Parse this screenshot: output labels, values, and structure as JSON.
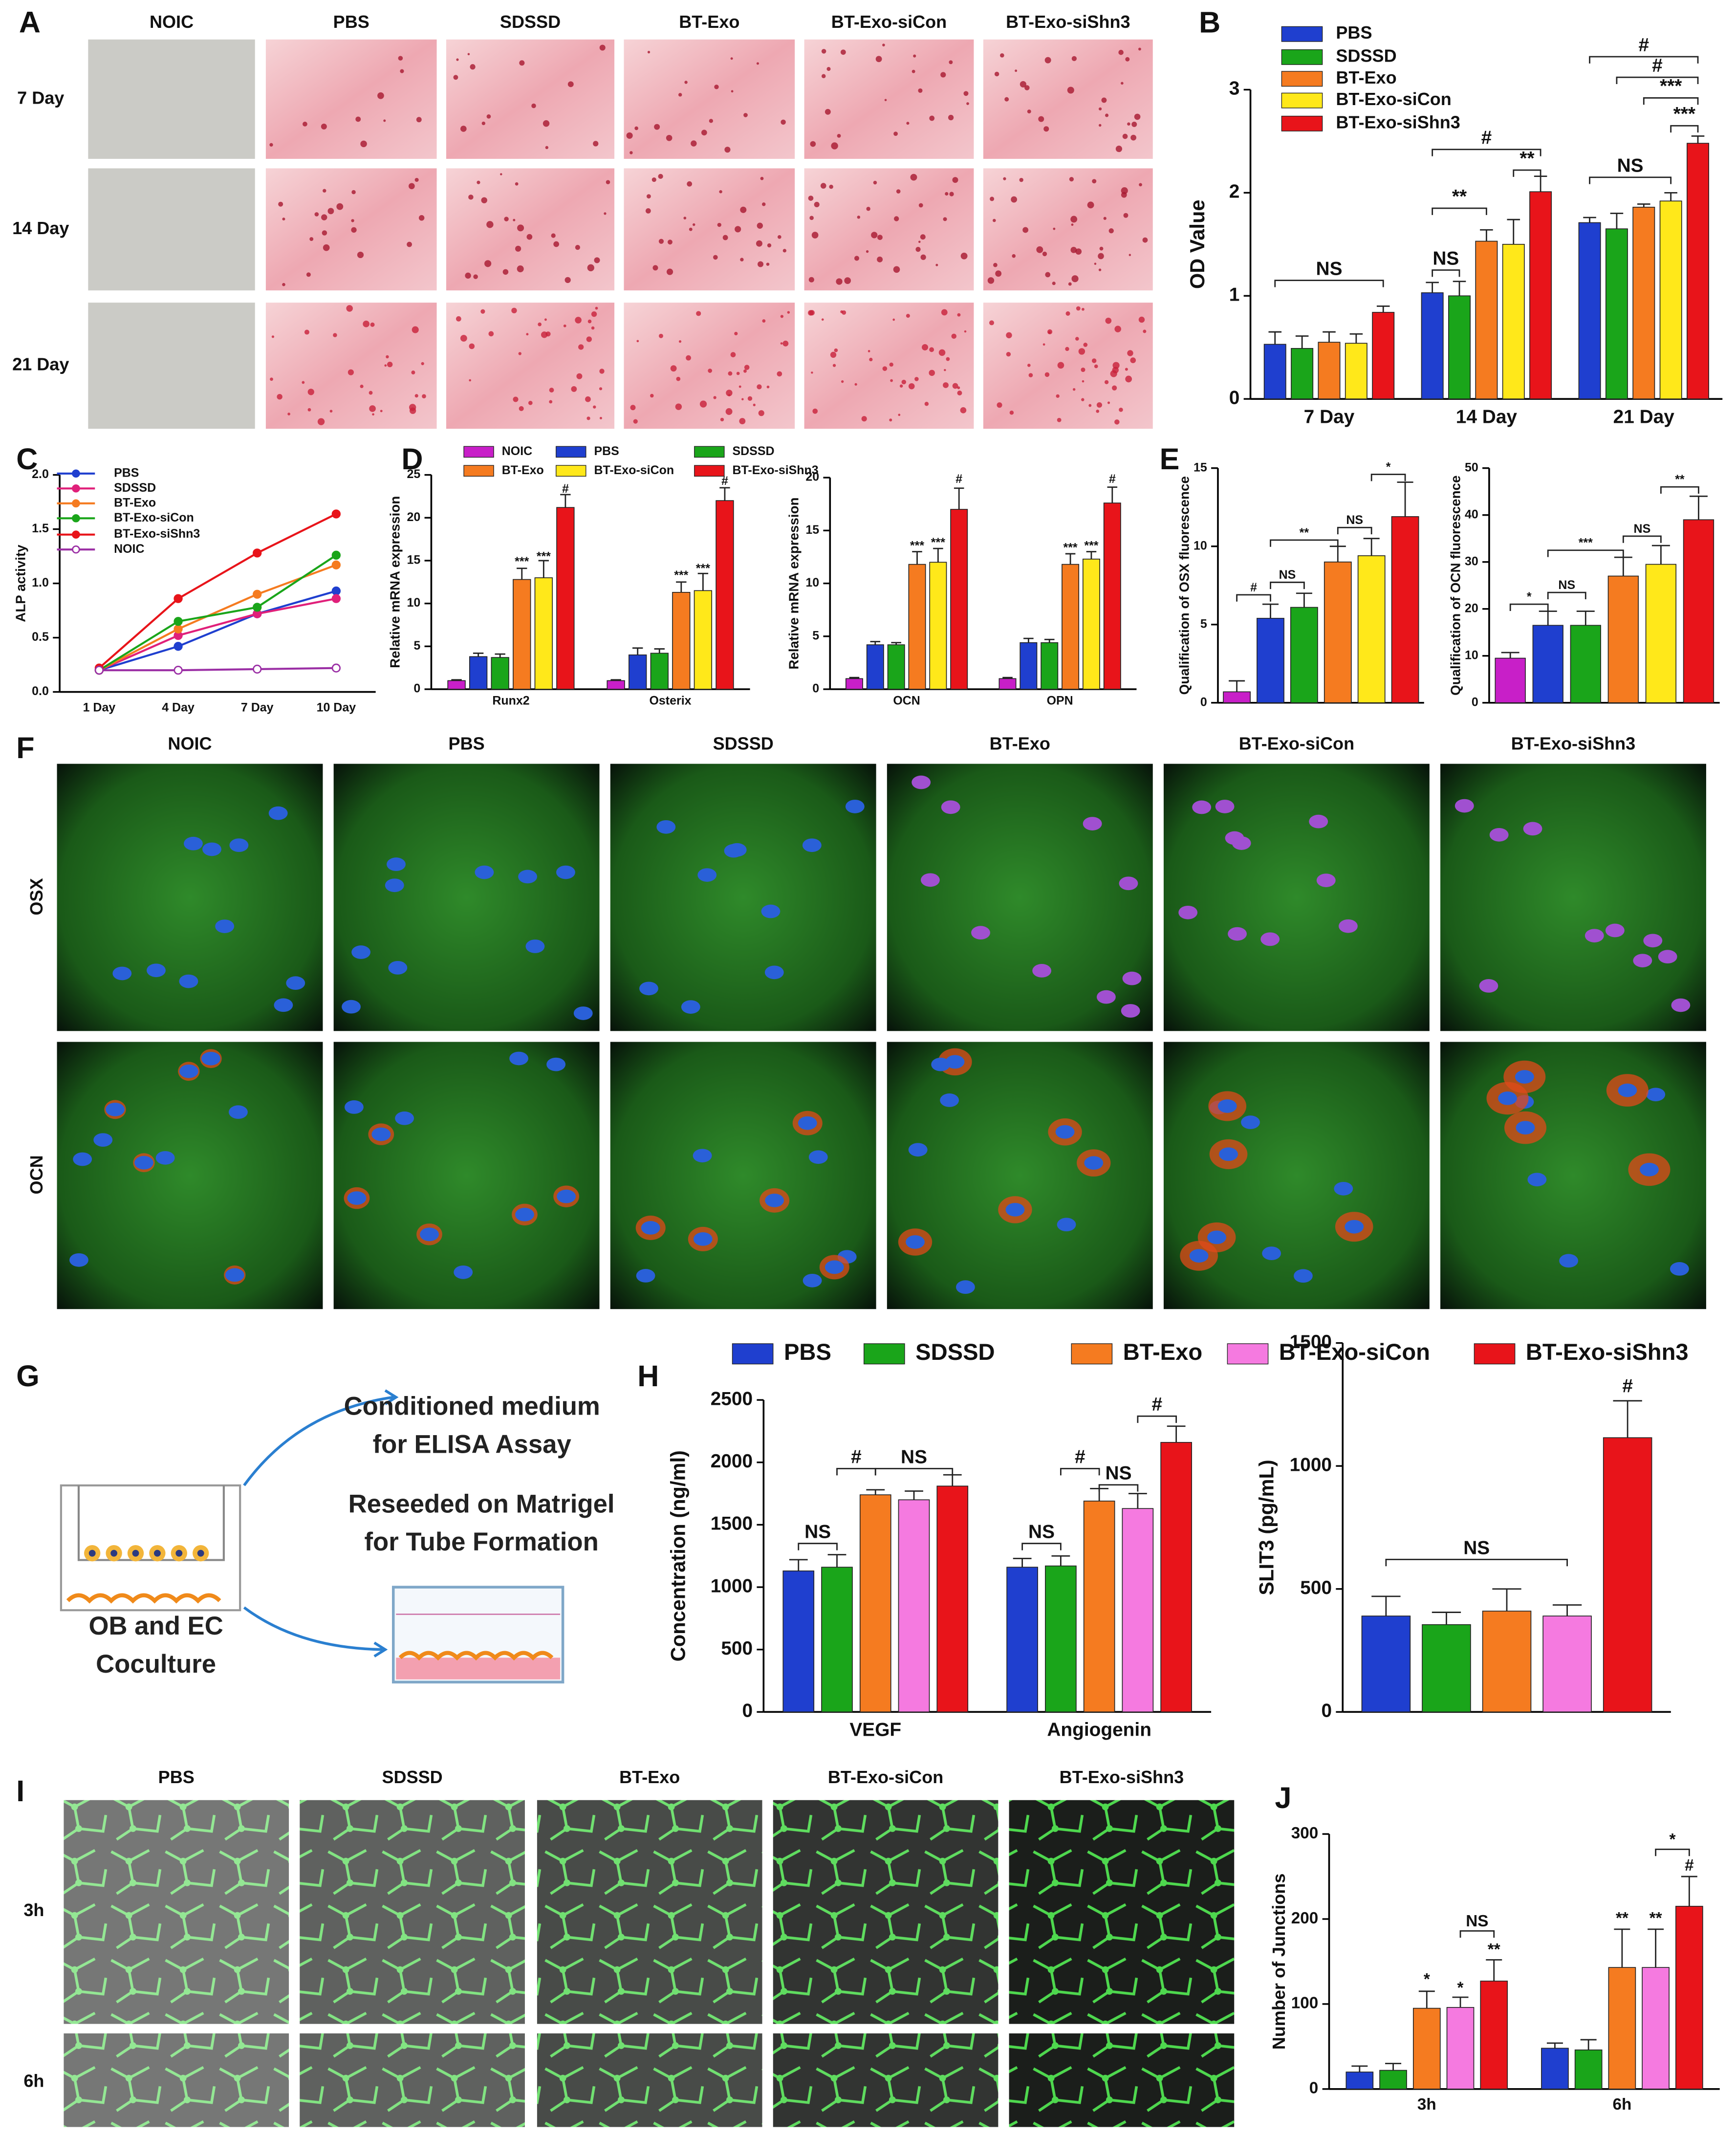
{
  "panel_labels": [
    "A",
    "B",
    "C",
    "D",
    "E",
    "F",
    "G",
    "H",
    "I",
    "J"
  ],
  "panel_a": {
    "columns": [
      "NOIC",
      "PBS",
      "SDSSD",
      "BT-Exo",
      "BT-Exo-siCon",
      "BT-Exo-siShn3"
    ],
    "rows": [
      "7 Day",
      "14 Day",
      "21 Day"
    ]
  },
  "panel_f": {
    "columns": [
      "NOIC",
      "PBS",
      "SDSSD",
      "BT-Exo",
      "BT-Exo-siCon",
      "BT-Exo-siShn3"
    ],
    "rows": [
      "OSX",
      "OCN"
    ]
  },
  "panel_g": {
    "texts": [
      "Conditioned medium",
      "for ELISA Assay",
      "Reseeded on Matrigel",
      "for Tube Formation",
      "OB and EC",
      "Coculture"
    ]
  },
  "panel_i": {
    "columns": [
      "PBS",
      "SDSSD",
      "BT-Exo",
      "BT-Exo-siCon",
      "BT-Exo-siShn3"
    ],
    "rows": [
      "3h",
      "6h"
    ]
  },
  "chart_data": [
    {
      "type": "bar",
      "ylabel": "OD Value",
      "categories": [
        "7 Day",
        "14 Day",
        "21 Day"
      ],
      "ylim": [
        0,
        3
      ],
      "yticks": [
        0,
        1,
        2,
        3
      ],
      "series": [
        {
          "name": "PBS",
          "color": "#1f3fcf",
          "values": [
            0.53,
            1.03,
            1.71
          ],
          "errors": [
            0.12,
            0.1,
            0.05
          ]
        },
        {
          "name": "SDSSD",
          "color": "#1aa51a",
          "values": [
            0.49,
            1.0,
            1.65
          ],
          "errors": [
            0.12,
            0.14,
            0.15
          ]
        },
        {
          "name": "BT-Exo",
          "color": "#f57b20",
          "values": [
            0.55,
            1.53,
            1.86
          ],
          "errors": [
            0.1,
            0.11,
            0.03
          ]
        },
        {
          "name": "BT-Exo-siCon",
          "color": "#ffe81a",
          "values": [
            0.54,
            1.5,
            1.92
          ],
          "errors": [
            0.09,
            0.24,
            0.08
          ]
        },
        {
          "name": "BT-Exo-siShn3",
          "color": "#e8141a",
          "values": [
            0.84,
            2.01,
            2.48
          ],
          "errors": [
            0.06,
            0.15,
            0.07
          ]
        }
      ],
      "annotations": [
        "NS",
        "NS",
        "**",
        "**",
        "#",
        "NS",
        "***",
        "***",
        "#",
        "#"
      ]
    },
    {
      "type": "line",
      "ylabel": "ALP activity",
      "categories": [
        "1 Day",
        "4 Day",
        "7 Day",
        "10 Day"
      ],
      "ylim": [
        0,
        2
      ],
      "yticks": [
        {
          "value": 0,
          "label": "0.0"
        },
        0.5,
        {
          "value": 1,
          "label": "1.0"
        },
        1.5,
        {
          "value": 2,
          "label": "2.0"
        }
      ],
      "series": [
        {
          "name": "PBS",
          "color": "#1f3fcf",
          "values": [
            0.2,
            0.42,
            0.72,
            0.93
          ]
        },
        {
          "name": "SDSSD",
          "color": "#e0207a",
          "values": [
            0.2,
            0.52,
            0.72,
            0.86
          ]
        },
        {
          "name": "BT-Exo",
          "color": "#f57b20",
          "values": [
            0.2,
            0.58,
            0.9,
            1.17
          ]
        },
        {
          "name": "BT-Exo-siCon",
          "color": "#1aa51a",
          "values": [
            0.2,
            0.65,
            0.78,
            1.26
          ]
        },
        {
          "name": "BT-Exo-siShn3",
          "color": "#e8141a",
          "values": [
            0.22,
            0.86,
            1.28,
            1.64
          ]
        },
        {
          "name": "NOIC",
          "color": "#9b2fa5",
          "marker": "open",
          "values": [
            0.2,
            0.2,
            0.21,
            0.22
          ]
        }
      ]
    },
    {
      "type": "bar",
      "ylabel": "Relative mRNA expression",
      "categories": [
        "Runx2",
        "Osterix"
      ],
      "ylim": [
        0,
        25
      ],
      "yticks": [
        0,
        5,
        10,
        15,
        20,
        25
      ],
      "series": [
        {
          "name": "NOIC",
          "color": "#c81fc8",
          "values": [
            1,
            1
          ],
          "errors": [
            0.1,
            0.1
          ]
        },
        {
          "name": "PBS",
          "color": "#1f3fcf",
          "values": [
            3.8,
            4
          ],
          "errors": [
            0.4,
            0.8
          ]
        },
        {
          "name": "SDSSD",
          "color": "#1aa51a",
          "values": [
            3.7,
            4.2
          ],
          "errors": [
            0.4,
            0.5
          ]
        },
        {
          "name": "BT-Exo",
          "color": "#f57b20",
          "values": [
            12.8,
            11.3
          ],
          "errors": [
            1.3,
            1.2
          ]
        },
        {
          "name": "BT-Exo-siCon",
          "color": "#ffe81a",
          "values": [
            13,
            11.5
          ],
          "errors": [
            2,
            2
          ]
        },
        {
          "name": "BT-Exo-siShn3",
          "color": "#e8141a",
          "values": [
            21.2,
            22
          ],
          "errors": [
            1.5,
            1.5
          ]
        }
      ],
      "annotations": [
        "***",
        "***",
        "#",
        "***",
        "***",
        "#"
      ]
    },
    {
      "type": "bar",
      "ylabel": "Relative mRNA expression",
      "categories": [
        "OCN",
        "OPN"
      ],
      "ylim": [
        0,
        20
      ],
      "yticks": [
        0,
        5,
        10,
        15,
        20
      ],
      "series": [
        {
          "color": "#c81fc8",
          "values": [
            1,
            1
          ],
          "errors": [
            0.1,
            0.1
          ]
        },
        {
          "color": "#1f3fcf",
          "values": [
            4.2,
            4.4
          ],
          "errors": [
            0.3,
            0.4
          ]
        },
        {
          "color": "#1aa51a",
          "values": [
            4.2,
            4.4
          ],
          "errors": [
            0.2,
            0.3
          ]
        },
        {
          "color": "#f57b20",
          "values": [
            11.8,
            11.8
          ],
          "errors": [
            1.2,
            1
          ]
        },
        {
          "color": "#ffe81a",
          "values": [
            12,
            12.3
          ],
          "errors": [
            1.3,
            0.7
          ]
        },
        {
          "color": "#e8141a",
          "values": [
            17,
            17.6
          ],
          "errors": [
            2,
            1.5
          ]
        }
      ],
      "annotations": [
        "***",
        "***",
        "#",
        "***",
        "***",
        "#"
      ]
    },
    {
      "type": "bar",
      "ylabel": "Qualification of OSX fluorescence",
      "categories": [
        null
      ],
      "ylim": [
        0,
        15
      ],
      "yticks": [
        0,
        5,
        10,
        15
      ],
      "series": [
        {
          "color": "#c81fc8",
          "values": [
            0.7
          ],
          "errors": [
            0.7
          ]
        },
        {
          "color": "#1f3fcf",
          "values": [
            5.4
          ],
          "errors": [
            0.9
          ]
        },
        {
          "color": "#1aa51a",
          "values": [
            6.1
          ],
          "errors": [
            0.9
          ]
        },
        {
          "color": "#f57b20",
          "values": [
            9
          ],
          "errors": [
            1
          ]
        },
        {
          "color": "#ffe81a",
          "values": [
            9.4
          ],
          "errors": [
            1.1
          ]
        },
        {
          "color": "#e8141a",
          "values": [
            11.9
          ],
          "errors": [
            2.2
          ]
        }
      ],
      "annotations": [
        "#",
        "NS",
        "**",
        "NS",
        "*"
      ]
    },
    {
      "type": "bar",
      "ylabel": "Qualification of OCN fluorescence",
      "categories": [
        null
      ],
      "ylim": [
        0,
        50
      ],
      "yticks": [
        0,
        10,
        20,
        30,
        40,
        50
      ],
      "series": [
        {
          "color": "#c81fc8",
          "values": [
            9.5
          ],
          "errors": [
            1.2
          ]
        },
        {
          "color": "#1f3fcf",
          "values": [
            16.5
          ],
          "errors": [
            3
          ]
        },
        {
          "color": "#1aa51a",
          "values": [
            16.5
          ],
          "errors": [
            3
          ]
        },
        {
          "color": "#f57b20",
          "values": [
            27
          ],
          "errors": [
            4
          ]
        },
        {
          "color": "#ffe81a",
          "values": [
            29.5
          ],
          "errors": [
            4
          ]
        },
        {
          "color": "#e8141a",
          "values": [
            39
          ],
          "errors": [
            5
          ]
        }
      ],
      "annotations": [
        "*",
        "NS",
        "***",
        "NS",
        "**"
      ]
    },
    {
      "type": "bar",
      "ylabel": "Concentration (ng/ml)",
      "categories": [
        "VEGF",
        "Angiogenin"
      ],
      "ylim": [
        0,
        2500
      ],
      "yticks": [
        0,
        500,
        1000,
        1500,
        2000,
        2500
      ],
      "series": [
        {
          "name": "PBS",
          "color": "#1f3fcf",
          "values": [
            1130,
            1160
          ],
          "errors": [
            90,
            70
          ]
        },
        {
          "name": "SDSSD",
          "color": "#1aa51a",
          "values": [
            1160,
            1170
          ],
          "errors": [
            100,
            80
          ]
        },
        {
          "name": "BT-Exo",
          "color": "#f57b20",
          "values": [
            1740,
            1690
          ],
          "errors": [
            40,
            100
          ]
        },
        {
          "name": "BT-Exo-siCon",
          "color": "#f57ae0",
          "values": [
            1700,
            1630
          ],
          "errors": [
            70,
            120
          ]
        },
        {
          "name": "BT-Exo-siShn3",
          "color": "#e8141a",
          "values": [
            1810,
            2160
          ],
          "errors": [
            90,
            130
          ]
        }
      ],
      "annotations": [
        "NS",
        "#",
        "NS",
        "NS",
        "#",
        "NS",
        "#"
      ]
    },
    {
      "type": "bar",
      "ylabel": "SLIT3 (pg/mL)",
      "categories": [
        null
      ],
      "ylim": [
        0,
        1500
      ],
      "yticks": [
        0,
        500,
        1000,
        1500
      ],
      "series": [
        {
          "color": "#1f3fcf",
          "values": [
            390
          ],
          "errors": [
            80
          ]
        },
        {
          "color": "#1aa51a",
          "values": [
            355
          ],
          "errors": [
            50
          ]
        },
        {
          "color": "#f57b20",
          "values": [
            410
          ],
          "errors": [
            90
          ]
        },
        {
          "color": "#f57ae0",
          "values": [
            390
          ],
          "errors": [
            45
          ]
        },
        {
          "color": "#e8141a",
          "values": [
            1115
          ],
          "errors": [
            150
          ]
        }
      ],
      "annotations": [
        "NS",
        "#"
      ]
    },
    {
      "type": "bar",
      "ylabel": "Number of Junctions",
      "categories": [
        "3h",
        "6h"
      ],
      "ylim": [
        0,
        300
      ],
      "yticks": [
        0,
        100,
        200,
        300
      ],
      "series": [
        {
          "color": "#1f3fcf",
          "values": [
            20,
            48
          ],
          "errors": [
            7,
            6
          ]
        },
        {
          "color": "#1aa51a",
          "values": [
            22,
            46
          ],
          "errors": [
            8,
            12
          ]
        },
        {
          "color": "#f57b20",
          "values": [
            95,
            143
          ],
          "errors": [
            20,
            45
          ]
        },
        {
          "color": "#f57ae0",
          "values": [
            96,
            143
          ],
          "errors": [
            12,
            45
          ]
        },
        {
          "color": "#e8141a",
          "values": [
            127,
            215
          ],
          "errors": [
            25,
            35
          ]
        }
      ],
      "annotations": [
        "*",
        "*",
        "**",
        "NS",
        "**",
        "**",
        "#",
        "*"
      ]
    }
  ]
}
